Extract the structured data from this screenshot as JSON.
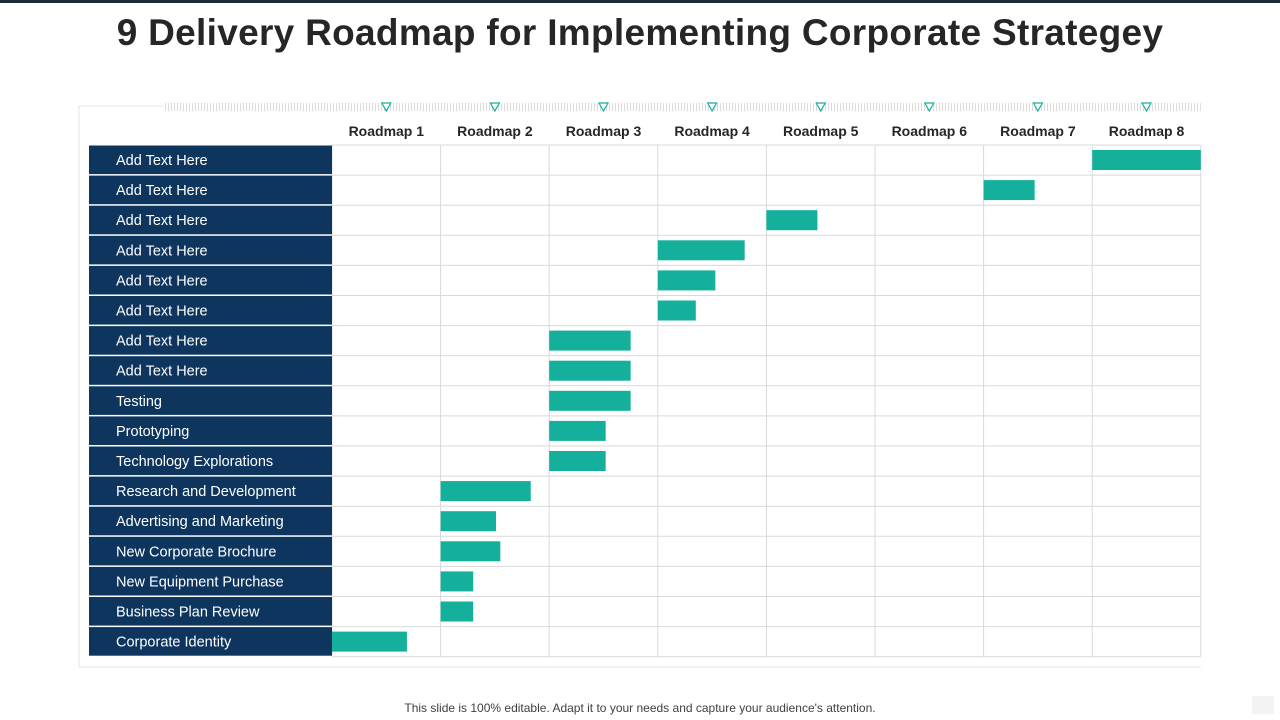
{
  "slide": {
    "title": "9 Delivery Roadmap for Implementing Corporate Strategey",
    "footer": "This slide is 100% editable. Adapt it to your needs and capture your audience's attention."
  },
  "colors": {
    "row_label_bg": "#0d355e",
    "row_label_text": "#ffffff",
    "bar": "#14b09b",
    "marker": "#14b09b",
    "grid": "#d9d9d9",
    "title": "#262626"
  },
  "chart_data": {
    "type": "gantt",
    "title": "9 Delivery Roadmap for Implementing Corporate Strategey",
    "columns": [
      "Roadmap 1",
      "Roadmap 2",
      "Roadmap 3",
      "Roadmap 4",
      "Roadmap 5",
      "Roadmap 6",
      "Roadmap 7",
      "Roadmap 8"
    ],
    "tasks": [
      {
        "label": "Add Text Here",
        "start": 7.0,
        "end": 8.0
      },
      {
        "label": "Add Text Here",
        "start": 6.0,
        "end": 6.47
      },
      {
        "label": "Add Text Here",
        "start": 4.0,
        "end": 4.47
      },
      {
        "label": "Add Text Here",
        "start": 3.0,
        "end": 3.8
      },
      {
        "label": "Add Text Here",
        "start": 3.0,
        "end": 3.53
      },
      {
        "label": "Add Text Here",
        "start": 3.0,
        "end": 3.35
      },
      {
        "label": "Add Text Here",
        "start": 2.0,
        "end": 2.75
      },
      {
        "label": "Add Text Here",
        "start": 2.0,
        "end": 2.75
      },
      {
        "label": "Testing",
        "start": 2.0,
        "end": 2.75
      },
      {
        "label": "Prototyping",
        "start": 2.0,
        "end": 2.52
      },
      {
        "label": "Technology Explorations",
        "start": 2.0,
        "end": 2.52
      },
      {
        "label": "Research and Development",
        "start": 1.0,
        "end": 1.83
      },
      {
        "label": "Advertising and Marketing",
        "start": 1.0,
        "end": 1.51
      },
      {
        "label": "New Corporate Brochure",
        "start": 1.0,
        "end": 1.55
      },
      {
        "label": "New Equipment Purchase",
        "start": 1.0,
        "end": 1.3
      },
      {
        "label": "Business Plan Review",
        "start": 1.0,
        "end": 1.3
      },
      {
        "label": "Corporate Identity",
        "start": 0.0,
        "end": 0.69
      }
    ]
  }
}
